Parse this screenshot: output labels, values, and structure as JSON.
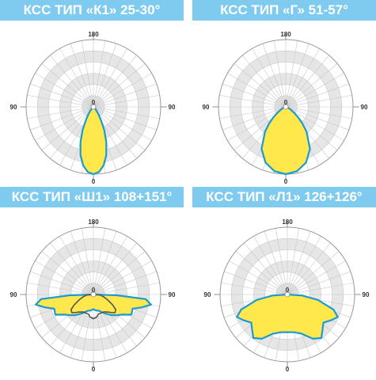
{
  "chart_data": [
    {
      "type": "polar-area",
      "title": "КСС ТИП «К1» 25-30°",
      "angle_labels": {
        "top": "180",
        "left": "90",
        "right": "90",
        "bottom": "0",
        "center": "0"
      },
      "colors": {
        "fill": "#ffe84c",
        "outline": "#1d9bd1"
      },
      "curve": [
        [
          0,
          1.0
        ],
        [
          5,
          0.97
        ],
        [
          10,
          0.88
        ],
        [
          15,
          0.74
        ],
        [
          20,
          0.56
        ],
        [
          25,
          0.38
        ],
        [
          30,
          0.22
        ],
        [
          35,
          0.12
        ],
        [
          40,
          0.06
        ],
        [
          45,
          0.03
        ],
        [
          50,
          0.015
        ],
        [
          60,
          0.0
        ]
      ]
    },
    {
      "type": "polar-area",
      "title": "КСС ТИП «Г» 51-57°",
      "angle_labels": {
        "top": "180",
        "left": "90",
        "right": "90",
        "bottom": "0",
        "center": "0"
      },
      "colors": {
        "fill": "#ffe84c",
        "outline": "#1d9bd1"
      },
      "curve": [
        [
          0,
          1.0
        ],
        [
          10,
          0.97
        ],
        [
          20,
          0.88
        ],
        [
          30,
          0.72
        ],
        [
          40,
          0.48
        ],
        [
          45,
          0.35
        ],
        [
          50,
          0.24
        ],
        [
          55,
          0.15
        ],
        [
          60,
          0.09
        ],
        [
          70,
          0.04
        ],
        [
          80,
          0.015
        ],
        [
          90,
          0.0
        ]
      ]
    },
    {
      "type": "polar-area",
      "title": "КСС ТИП «Ш1» 108+151°",
      "angle_labels": {
        "top": "180",
        "left": "90",
        "right": "90",
        "bottom": "0",
        "center": "0"
      },
      "colors": {
        "fill": "#ffe84c",
        "outline": "#1d9bd1",
        "second_curve": "#555555"
      },
      "curve": [
        [
          -90,
          0.0
        ],
        [
          -88,
          0.35
        ],
        [
          -85,
          0.78
        ],
        [
          -80,
          0.87
        ],
        [
          -75,
          0.74
        ],
        [
          -70,
          0.62
        ],
        [
          -62,
          0.64
        ],
        [
          -55,
          0.52
        ],
        [
          -48,
          0.46
        ],
        [
          -40,
          0.4
        ],
        [
          -30,
          0.32
        ],
        [
          -20,
          0.26
        ],
        [
          -10,
          0.24
        ],
        [
          0,
          0.22
        ],
        [
          10,
          0.24
        ],
        [
          20,
          0.26
        ],
        [
          30,
          0.32
        ],
        [
          40,
          0.4
        ],
        [
          48,
          0.46
        ],
        [
          55,
          0.52
        ],
        [
          62,
          0.64
        ],
        [
          70,
          0.62
        ],
        [
          75,
          0.74
        ],
        [
          80,
          0.87
        ],
        [
          85,
          0.78
        ],
        [
          88,
          0.35
        ],
        [
          90,
          0.0
        ]
      ],
      "second_curve": [
        [
          -90,
          0.0
        ],
        [
          -85,
          0.1
        ],
        [
          -78,
          0.15
        ],
        [
          -70,
          0.22
        ],
        [
          -62,
          0.32
        ],
        [
          -56,
          0.4
        ],
        [
          -50,
          0.42
        ],
        [
          -45,
          0.38
        ],
        [
          -38,
          0.33
        ],
        [
          -30,
          0.3
        ],
        [
          -22,
          0.3
        ],
        [
          -15,
          0.3
        ],
        [
          -8,
          0.34
        ],
        [
          0,
          0.36
        ],
        [
          8,
          0.34
        ],
        [
          15,
          0.3
        ],
        [
          22,
          0.3
        ],
        [
          30,
          0.3
        ],
        [
          38,
          0.33
        ],
        [
          45,
          0.38
        ],
        [
          50,
          0.42
        ],
        [
          56,
          0.4
        ],
        [
          62,
          0.32
        ],
        [
          70,
          0.22
        ],
        [
          78,
          0.15
        ],
        [
          85,
          0.1
        ],
        [
          90,
          0.0
        ]
      ]
    },
    {
      "type": "polar-area",
      "title": "КСС ТИП «Л1» 126+126°",
      "angle_labels": {
        "top": "180",
        "left": "90",
        "right": "90",
        "bottom": "0",
        "center": "0"
      },
      "colors": {
        "fill": "#ffe84c",
        "outline": "#1d9bd1"
      },
      "curve": [
        [
          -90,
          0.0
        ],
        [
          -86,
          0.22
        ],
        [
          -80,
          0.46
        ],
        [
          -72,
          0.72
        ],
        [
          -66,
          0.82
        ],
        [
          -60,
          0.76
        ],
        [
          -52,
          0.68
        ],
        [
          -45,
          0.74
        ],
        [
          -38,
          0.82
        ],
        [
          -30,
          0.76
        ],
        [
          -20,
          0.62
        ],
        [
          -10,
          0.57
        ],
        [
          0,
          0.56
        ],
        [
          10,
          0.57
        ],
        [
          20,
          0.62
        ],
        [
          30,
          0.76
        ],
        [
          38,
          0.82
        ],
        [
          45,
          0.74
        ],
        [
          52,
          0.68
        ],
        [
          60,
          0.76
        ],
        [
          66,
          0.82
        ],
        [
          72,
          0.72
        ],
        [
          80,
          0.46
        ],
        [
          86,
          0.22
        ],
        [
          90,
          0.0
        ]
      ]
    }
  ]
}
